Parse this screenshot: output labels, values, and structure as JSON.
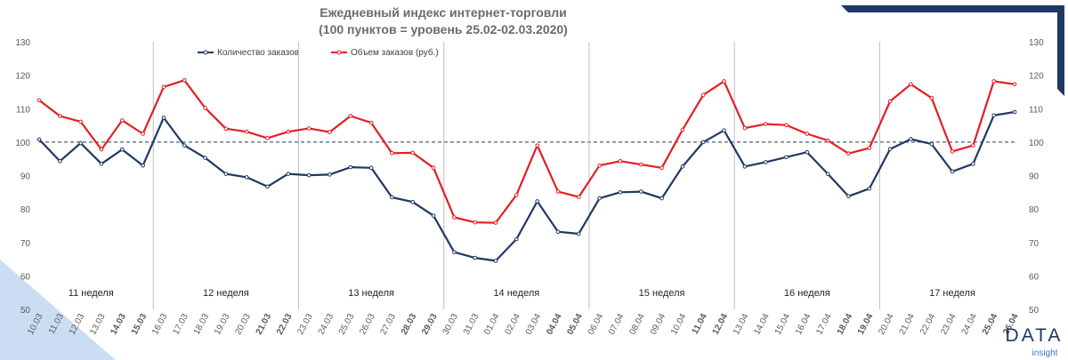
{
  "chart_data": {
    "type": "line",
    "title": "Ежедневный индекс интернет-торговли",
    "subtitle": "(100 пунктов = уровень 25.02-02.03.2020)",
    "ylim": [
      50,
      130
    ],
    "yticks": [
      50,
      60,
      70,
      80,
      90,
      100,
      110,
      120,
      130
    ],
    "reference_line": 100,
    "grid": false,
    "legend_position": "top-left",
    "categories": [
      "10.03",
      "11.03",
      "12.03",
      "13.03",
      "14.03",
      "15.03",
      "16.03",
      "17.03",
      "18.03",
      "19.03",
      "20.03",
      "21.03",
      "22.03",
      "23.03",
      "24.03",
      "25.03",
      "26.03",
      "27.03",
      "28.03",
      "29.03",
      "30.03",
      "31.03",
      "01.04",
      "02.04",
      "03.04",
      "04.04",
      "05.04",
      "06.04",
      "07.04",
      "08.04",
      "09.04",
      "10.04",
      "11.04",
      "12.04",
      "13.04",
      "14.04",
      "15.04",
      "16.04",
      "17.04",
      "18.04",
      "19.04",
      "20.04",
      "21.04",
      "22.04",
      "23.04",
      "24.04",
      "25.04",
      "26.04"
    ],
    "weekend_categories": [
      "14.03",
      "15.03",
      "21.03",
      "22.03",
      "28.03",
      "29.03",
      "04.04",
      "05.04",
      "11.04",
      "12.04",
      "18.04",
      "19.04",
      "25.04",
      "26.04"
    ],
    "series": [
      {
        "name": "Количество заказов",
        "color": "#1f3864",
        "values": [
          100.8,
          94.3,
          99.7,
          93.5,
          97.8,
          93,
          107.3,
          99,
          95.3,
          90.5,
          89.5,
          86.7,
          90.5,
          90.1,
          90.3,
          92.5,
          92.3,
          83.5,
          82.1,
          78,
          67.1,
          65.4,
          64.5,
          71,
          82.3,
          73.2,
          72.6,
          83.2,
          85,
          85.2,
          83.2,
          92.7,
          100,
          103.5,
          92.7,
          94,
          95.5,
          97,
          90.5,
          83.8,
          86.1,
          97.9,
          100.9,
          99.4,
          91.2,
          93.5,
          108,
          109
        ]
      },
      {
        "name": "Объем заказов (руб.)",
        "color": "#e31e24",
        "values": [
          112.5,
          107.8,
          106.1,
          97.8,
          106.5,
          102.5,
          116.5,
          118.5,
          110.2,
          104,
          103.1,
          101.2,
          103.1,
          104.1,
          103,
          107.8,
          105.8,
          96.7,
          96.8,
          92.3,
          77.5,
          76,
          75.9,
          84.2,
          99,
          85.2,
          83.6,
          93,
          94.3,
          93.3,
          92.3,
          103.7,
          114.1,
          118.2,
          104.2,
          105.4,
          105.1,
          102.5,
          100.5,
          96.6,
          98.2,
          112.2,
          117.3,
          113.2,
          97.2,
          99,
          118.2,
          117.3
        ]
      }
    ],
    "weeks": [
      "11 неделя",
      "12 неделя",
      "13 неделя",
      "14 неделя",
      "15 неделя",
      "16 неделя",
      "17 неделя"
    ],
    "logo": {
      "text": "DATA",
      "subtext": "insight"
    }
  }
}
